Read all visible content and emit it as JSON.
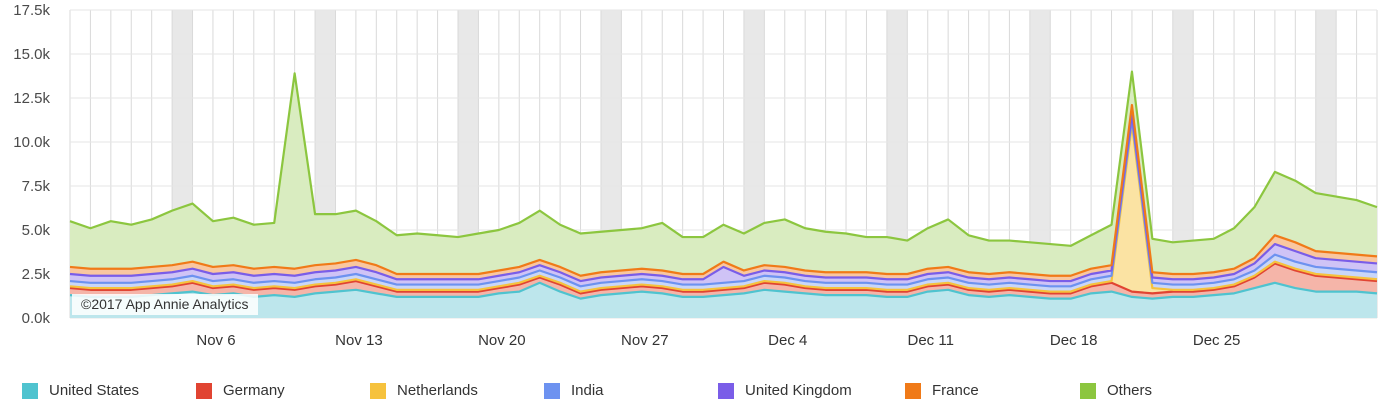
{
  "watermark": "©2017 App Annie Analytics",
  "chart_data": {
    "type": "area",
    "stacked": true,
    "x": [
      "Oct 30",
      "Oct 31",
      "Nov 1",
      "Nov 2",
      "Nov 3",
      "Nov 4",
      "Nov 5",
      "Nov 6",
      "Nov 7",
      "Nov 8",
      "Nov 9",
      "Nov 10",
      "Nov 11",
      "Nov 12",
      "Nov 13",
      "Nov 14",
      "Nov 15",
      "Nov 16",
      "Nov 17",
      "Nov 18",
      "Nov 19",
      "Nov 20",
      "Nov 21",
      "Nov 22",
      "Nov 23",
      "Nov 24",
      "Nov 25",
      "Nov 26",
      "Nov 27",
      "Nov 28",
      "Nov 29",
      "Nov 30",
      "Dec 1",
      "Dec 2",
      "Dec 3",
      "Dec 4",
      "Dec 5",
      "Dec 6",
      "Dec 7",
      "Dec 8",
      "Dec 9",
      "Dec 10",
      "Dec 11",
      "Dec 12",
      "Dec 13",
      "Dec 14",
      "Dec 15",
      "Dec 16",
      "Dec 17",
      "Dec 18",
      "Dec 19",
      "Dec 20",
      "Dec 21",
      "Dec 22",
      "Dec 23",
      "Dec 24",
      "Dec 25",
      "Dec 26",
      "Dec 27",
      "Dec 28",
      "Dec 29",
      "Dec 30",
      "Dec 31",
      "Jan 1",
      "Jan 2"
    ],
    "x_tick_labels": [
      "Nov 6",
      "Nov 13",
      "Nov 20",
      "Nov 27",
      "Dec 4",
      "Dec 11",
      "Dec 18",
      "Dec 25"
    ],
    "y_ticks": [
      "0.0k",
      "2.5k",
      "5.0k",
      "7.5k",
      "10.0k",
      "12.5k",
      "15.0k",
      "17.5k"
    ],
    "ylim": [
      0,
      17500
    ],
    "weekend_shading": true,
    "grid": true,
    "legend_position": "bottom",
    "series": [
      {
        "name": "United States",
        "color": "#4fc3cf",
        "fill": "#bde6ec",
        "values": [
          1300,
          1200,
          1200,
          1200,
          1300,
          1400,
          1500,
          1300,
          1400,
          1200,
          1300,
          1200,
          1400,
          1500,
          1600,
          1400,
          1200,
          1200,
          1200,
          1200,
          1200,
          1400,
          1500,
          2000,
          1500,
          1100,
          1300,
          1400,
          1500,
          1400,
          1200,
          1200,
          1300,
          1400,
          1600,
          1500,
          1400,
          1300,
          1300,
          1300,
          1200,
          1200,
          1500,
          1600,
          1300,
          1200,
          1300,
          1200,
          1100,
          1100,
          1400,
          1500,
          1200,
          1100,
          1200,
          1200,
          1300,
          1400,
          1700,
          2000,
          1700,
          1500,
          1500,
          1500,
          1400
        ]
      },
      {
        "name": "Germany",
        "color": "#e14432",
        "fill": "#f5b5a9",
        "values": [
          400,
          400,
          400,
          400,
          400,
          400,
          500,
          400,
          400,
          400,
          400,
          400,
          400,
          400,
          500,
          400,
          300,
          300,
          300,
          300,
          300,
          300,
          400,
          300,
          400,
          300,
          300,
          300,
          300,
          300,
          300,
          300,
          300,
          300,
          400,
          400,
          300,
          300,
          300,
          300,
          300,
          300,
          300,
          300,
          300,
          300,
          300,
          300,
          300,
          300,
          400,
          500,
          300,
          300,
          300,
          300,
          300,
          400,
          600,
          1100,
          1000,
          900,
          800,
          700,
          700
        ]
      },
      {
        "name": "Netherlands",
        "color": "#f6c23d",
        "fill": "#fbe3a3",
        "values": [
          100,
          100,
          100,
          100,
          100,
          100,
          100,
          100,
          100,
          100,
          100,
          100,
          100,
          100,
          100,
          100,
          100,
          100,
          100,
          100,
          100,
          100,
          100,
          100,
          100,
          100,
          100,
          100,
          100,
          100,
          100,
          100,
          100,
          100,
          100,
          100,
          100,
          100,
          100,
          100,
          100,
          100,
          100,
          100,
          100,
          100,
          100,
          100,
          100,
          100,
          100,
          100,
          9500,
          300,
          100,
          100,
          100,
          100,
          100,
          100,
          100,
          100,
          100,
          100,
          100
        ]
      },
      {
        "name": "India",
        "color": "#6d92f0",
        "fill": "#c9d6f8",
        "values": [
          300,
          300,
          300,
          300,
          300,
          300,
          300,
          300,
          300,
          300,
          300,
          300,
          300,
          300,
          300,
          300,
          300,
          300,
          300,
          300,
          300,
          300,
          300,
          300,
          300,
          300,
          300,
          300,
          300,
          300,
          300,
          300,
          300,
          300,
          300,
          300,
          300,
          300,
          300,
          300,
          300,
          300,
          300,
          300,
          300,
          300,
          300,
          300,
          300,
          300,
          300,
          300,
          300,
          300,
          300,
          300,
          300,
          300,
          300,
          400,
          400,
          400,
          400,
          400,
          400
        ]
      },
      {
        "name": "United Kingdom",
        "color": "#7a5de8",
        "fill": "#cfc3f6",
        "values": [
          400,
          400,
          400,
          400,
          400,
          400,
          400,
          400,
          400,
          400,
          400,
          400,
          400,
          400,
          400,
          400,
          300,
          300,
          300,
          300,
          300,
          300,
          300,
          300,
          300,
          300,
          300,
          300,
          300,
          300,
          300,
          300,
          900,
          300,
          300,
          300,
          300,
          300,
          300,
          300,
          300,
          300,
          300,
          300,
          300,
          300,
          300,
          300,
          300,
          300,
          300,
          300,
          300,
          300,
          300,
          300,
          300,
          300,
          400,
          600,
          600,
          500,
          500,
          500,
          500
        ]
      },
      {
        "name": "France",
        "color": "#f07a18",
        "fill": "#f9c7a0",
        "values": [
          400,
          400,
          400,
          400,
          400,
          400,
          400,
          400,
          400,
          400,
          400,
          400,
          400,
          400,
          400,
          400,
          300,
          300,
          300,
          300,
          300,
          300,
          300,
          300,
          300,
          300,
          300,
          300,
          300,
          300,
          300,
          300,
          300,
          300,
          300,
          300,
          300,
          300,
          300,
          300,
          300,
          300,
          300,
          300,
          300,
          300,
          300,
          300,
          300,
          300,
          300,
          300,
          500,
          300,
          300,
          300,
          300,
          300,
          300,
          500,
          500,
          400,
          400,
          400,
          400
        ]
      },
      {
        "name": "Others",
        "color": "#8cc63f",
        "fill": "#d9ecc0",
        "values": [
          2600,
          2300,
          2700,
          2500,
          2700,
          3100,
          3300,
          2600,
          2700,
          2500,
          2500,
          11100,
          2900,
          2800,
          2800,
          2500,
          2200,
          2300,
          2200,
          2100,
          2300,
          2300,
          2500,
          2800,
          2400,
          2400,
          2300,
          2300,
          2300,
          2700,
          2100,
          2100,
          2100,
          2100,
          2400,
          2700,
          2400,
          2300,
          2200,
          2000,
          2100,
          1900,
          2300,
          2700,
          2100,
          1900,
          1800,
          1800,
          1800,
          1700,
          1900,
          2300,
          1900,
          1900,
          1800,
          1900,
          1900,
          2300,
          2900,
          3600,
          3500,
          3300,
          3200,
          3100,
          2800
        ]
      }
    ]
  }
}
